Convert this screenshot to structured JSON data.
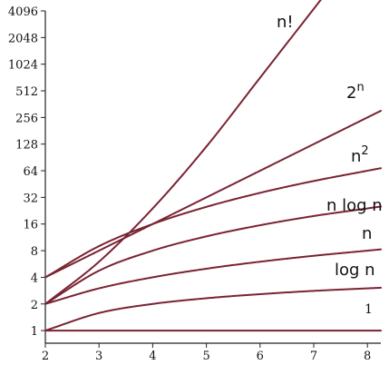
{
  "chart_data": {
    "type": "line",
    "title": "",
    "xlabel": "",
    "ylabel": "",
    "xlim": [
      2,
      8.25
    ],
    "ylim": [
      0.72,
      4096
    ],
    "yscale": "log2",
    "x_ticks": [
      "2",
      "3",
      "4",
      "5",
      "6",
      "7",
      "8"
    ],
    "y_ticks": [
      "1",
      "2",
      "4",
      "8",
      "16",
      "32",
      "64",
      "128",
      "256",
      "512",
      "1024",
      "2048",
      "4096"
    ],
    "grid": false,
    "line_color": "#7a2332",
    "series": [
      {
        "name": "n!",
        "x": [
          2,
          3,
          4,
          5,
          6
        ],
        "y": [
          2,
          6,
          24,
          120,
          720
        ]
      },
      {
        "name": "2",
        "superscript": "n",
        "x": [
          2,
          3,
          4,
          5,
          6,
          7,
          8
        ],
        "y": [
          4,
          8,
          16,
          32,
          64,
          128,
          256
        ]
      },
      {
        "name": "n",
        "superscript": "2",
        "x": [
          2,
          3,
          4,
          5,
          6,
          7,
          8
        ],
        "y": [
          4,
          9,
          16,
          25,
          36,
          49,
          64
        ]
      },
      {
        "name": "n log n",
        "x": [
          2,
          3,
          4,
          5,
          6,
          7,
          8
        ],
        "y": [
          2,
          4.75,
          8,
          11.6,
          15.5,
          19.7,
          24
        ]
      },
      {
        "name": "n",
        "x": [
          2,
          3,
          4,
          5,
          6,
          7,
          8
        ],
        "y": [
          2,
          3,
          4,
          5,
          6,
          7,
          8
        ]
      },
      {
        "name": "log n",
        "x": [
          2,
          3,
          4,
          5,
          6,
          7,
          8
        ],
        "y": [
          1,
          1.58,
          2,
          2.32,
          2.58,
          2.81,
          3
        ]
      },
      {
        "name": "1",
        "x": [
          2,
          3,
          4,
          5,
          6,
          7,
          8
        ],
        "y": [
          1,
          1,
          1,
          1,
          1,
          1,
          1
        ]
      }
    ]
  }
}
